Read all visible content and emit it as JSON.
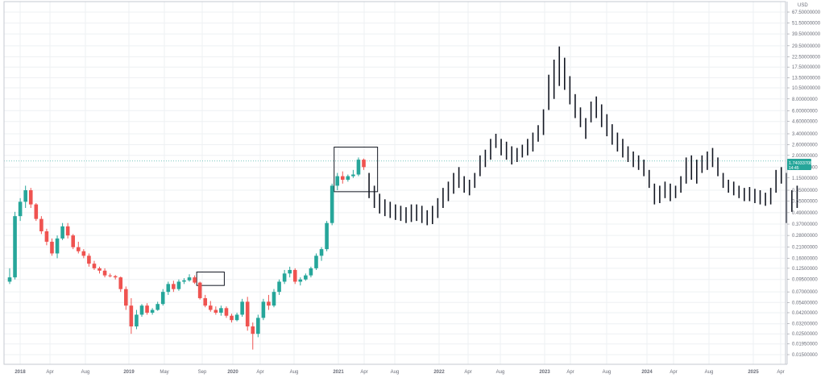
{
  "chart_data": {
    "type": "candlestick",
    "currency": "USD",
    "price_scale": "log",
    "y_ticks": [
      "67.50000000",
      "51.50000000",
      "39.50000000",
      "29.50000000",
      "22.50000000",
      "17.50000000",
      "13.50000000",
      "10.50000000",
      "8.00000000",
      "6.00000000",
      "4.60000000",
      "3.40000000",
      "2.60000000",
      "2.00000000",
      "1.50000000",
      "1.15000000",
      "0.85000000",
      "0.65000000",
      "0.49000000",
      "0.37000000",
      "0.28000000",
      "0.21000000",
      "0.16000000",
      "0.12500000",
      "0.09500000",
      "0.07000000",
      "0.05400000",
      "0.04200000",
      "0.03200000",
      "0.02500000",
      "0.01950000",
      "0.01500000"
    ],
    "x_ticks": [
      "2018",
      "Apr",
      "Aug",
      "2019",
      "May",
      "Sep",
      "2020",
      "Apr",
      "Aug",
      "2021",
      "Apr",
      "Aug",
      "2022",
      "Apr",
      "Aug",
      "2023",
      "Apr",
      "Aug",
      "2024",
      "Apr",
      "Aug",
      "2025",
      "Apr"
    ],
    "last_price": {
      "value": "1.74033708",
      "countdown": "14:45"
    },
    "history_candles": [
      [
        0.09,
        0.125,
        0.085,
        0.1
      ],
      [
        0.1,
        0.5,
        0.095,
        0.45
      ],
      [
        0.45,
        0.7,
        0.4,
        0.64
      ],
      [
        0.64,
        0.95,
        0.55,
        0.85
      ],
      [
        0.85,
        0.9,
        0.55,
        0.6
      ],
      [
        0.6,
        0.62,
        0.4,
        0.42
      ],
      [
        0.42,
        0.45,
        0.29,
        0.31
      ],
      [
        0.31,
        0.33,
        0.22,
        0.24
      ],
      [
        0.24,
        0.26,
        0.17,
        0.18
      ],
      [
        0.18,
        0.28,
        0.16,
        0.26
      ],
      [
        0.26,
        0.38,
        0.25,
        0.35
      ],
      [
        0.35,
        0.38,
        0.26,
        0.28
      ],
      [
        0.28,
        0.29,
        0.2,
        0.21
      ],
      [
        0.21,
        0.24,
        0.18,
        0.19
      ],
      [
        0.19,
        0.2,
        0.16,
        0.17
      ],
      [
        0.17,
        0.18,
        0.13,
        0.14
      ],
      [
        0.14,
        0.15,
        0.12,
        0.125
      ],
      [
        0.125,
        0.13,
        0.11,
        0.118
      ],
      [
        0.118,
        0.125,
        0.1,
        0.105
      ],
      [
        0.105,
        0.11,
        0.1,
        0.103
      ],
      [
        0.103,
        0.106,
        0.095,
        0.1
      ],
      [
        0.1,
        0.102,
        0.07,
        0.075
      ],
      [
        0.075,
        0.08,
        0.045,
        0.05
      ],
      [
        0.05,
        0.06,
        0.025,
        0.03
      ],
      [
        0.03,
        0.045,
        0.028,
        0.04
      ],
      [
        0.04,
        0.052,
        0.038,
        0.05
      ],
      [
        0.05,
        0.053,
        0.04,
        0.042
      ],
      [
        0.042,
        0.047,
        0.04,
        0.045
      ],
      [
        0.045,
        0.055,
        0.044,
        0.052
      ],
      [
        0.052,
        0.075,
        0.05,
        0.07
      ],
      [
        0.07,
        0.09,
        0.065,
        0.085
      ],
      [
        0.085,
        0.092,
        0.07,
        0.075
      ],
      [
        0.075,
        0.095,
        0.072,
        0.09
      ],
      [
        0.09,
        0.098,
        0.085,
        0.093
      ],
      [
        0.093,
        0.108,
        0.09,
        0.1
      ],
      [
        0.1,
        0.105,
        0.085,
        0.088
      ],
      [
        0.088,
        0.09,
        0.058,
        0.06
      ],
      [
        0.06,
        0.065,
        0.048,
        0.05
      ],
      [
        0.05,
        0.056,
        0.043,
        0.045
      ],
      [
        0.045,
        0.049,
        0.04,
        0.042
      ],
      [
        0.042,
        0.05,
        0.039,
        0.047
      ],
      [
        0.047,
        0.049,
        0.037,
        0.039
      ],
      [
        0.039,
        0.041,
        0.033,
        0.035
      ],
      [
        0.035,
        0.042,
        0.034,
        0.04
      ],
      [
        0.04,
        0.059,
        0.038,
        0.055
      ],
      [
        0.055,
        0.062,
        0.027,
        0.03
      ],
      [
        0.03,
        0.033,
        0.017,
        0.025
      ],
      [
        0.025,
        0.04,
        0.023,
        0.037
      ],
      [
        0.037,
        0.059,
        0.035,
        0.055
      ],
      [
        0.055,
        0.065,
        0.045,
        0.05
      ],
      [
        0.05,
        0.075,
        0.048,
        0.07
      ],
      [
        0.07,
        0.095,
        0.065,
        0.09
      ],
      [
        0.09,
        0.12,
        0.085,
        0.11
      ],
      [
        0.11,
        0.13,
        0.1,
        0.12
      ],
      [
        0.12,
        0.125,
        0.085,
        0.09
      ],
      [
        0.09,
        0.1,
        0.082,
        0.095
      ],
      [
        0.095,
        0.11,
        0.092,
        0.105
      ],
      [
        0.105,
        0.13,
        0.1,
        0.125
      ],
      [
        0.125,
        0.18,
        0.12,
        0.17
      ],
      [
        0.17,
        0.21,
        0.15,
        0.2
      ],
      [
        0.2,
        0.4,
        0.19,
        0.38
      ],
      [
        0.38,
        1.0,
        0.36,
        0.95
      ],
      [
        0.95,
        1.3,
        0.85,
        1.2
      ],
      [
        1.2,
        1.35,
        1.0,
        1.1
      ],
      [
        1.1,
        1.25,
        1.05,
        1.2
      ],
      [
        1.2,
        1.4,
        1.15,
        1.25
      ],
      [
        1.25,
        1.9,
        1.2,
        1.8
      ],
      [
        1.8,
        1.85,
        1.4,
        1.5
      ]
    ],
    "projection_ranges": [
      [
        1.3,
        0.7
      ],
      [
        0.95,
        0.55
      ],
      [
        0.78,
        0.48
      ],
      [
        0.68,
        0.45
      ],
      [
        0.64,
        0.43
      ],
      [
        0.6,
        0.41
      ],
      [
        0.58,
        0.4
      ],
      [
        0.56,
        0.38
      ],
      [
        0.6,
        0.39
      ],
      [
        0.6,
        0.4
      ],
      [
        0.58,
        0.38
      ],
      [
        0.52,
        0.36
      ],
      [
        0.58,
        0.37
      ],
      [
        0.7,
        0.43
      ],
      [
        0.9,
        0.55
      ],
      [
        1.05,
        0.65
      ],
      [
        1.3,
        0.78
      ],
      [
        1.5,
        0.9
      ],
      [
        1.2,
        0.8
      ],
      [
        1.1,
        0.75
      ],
      [
        1.3,
        0.9
      ],
      [
        2.0,
        1.2
      ],
      [
        2.3,
        1.5
      ],
      [
        3.0,
        1.8
      ],
      [
        3.4,
        2.4
      ],
      [
        3.0,
        2.0
      ],
      [
        2.8,
        1.8
      ],
      [
        2.5,
        1.6
      ],
      [
        2.4,
        1.7
      ],
      [
        2.6,
        1.9
      ],
      [
        3.0,
        2.0
      ],
      [
        3.5,
        2.2
      ],
      [
        4.2,
        2.8
      ],
      [
        6.2,
        3.3
      ],
      [
        14.5,
        6.1
      ],
      [
        21.0,
        8.0
      ],
      [
        29.0,
        11.0
      ],
      [
        22.0,
        10.0
      ],
      [
        14.0,
        7.0
      ],
      [
        9.0,
        5.0
      ],
      [
        6.5,
        4.0
      ],
      [
        5.0,
        3.0
      ],
      [
        7.5,
        4.5
      ],
      [
        8.5,
        5.0
      ],
      [
        7.0,
        4.0
      ],
      [
        5.5,
        3.2
      ],
      [
        4.3,
        2.6
      ],
      [
        3.5,
        2.2
      ],
      [
        3.0,
        1.9
      ],
      [
        2.5,
        1.7
      ],
      [
        2.2,
        1.5
      ],
      [
        2.0,
        1.4
      ],
      [
        1.8,
        1.2
      ],
      [
        1.4,
        0.9
      ],
      [
        1.0,
        0.6
      ],
      [
        0.95,
        0.62
      ],
      [
        1.05,
        0.7
      ],
      [
        1.0,
        0.65
      ],
      [
        0.95,
        0.7
      ],
      [
        1.2,
        0.8
      ],
      [
        1.9,
        1.0
      ],
      [
        2.0,
        1.1
      ],
      [
        1.8,
        1.0
      ],
      [
        2.0,
        1.3
      ],
      [
        2.2,
        1.4
      ],
      [
        2.4,
        1.5
      ],
      [
        1.9,
        1.2
      ],
      [
        1.3,
        0.9
      ],
      [
        1.1,
        0.8
      ],
      [
        1.05,
        0.75
      ],
      [
        0.95,
        0.7
      ],
      [
        0.9,
        0.65
      ],
      [
        0.92,
        0.65
      ],
      [
        0.88,
        0.62
      ],
      [
        0.85,
        0.6
      ],
      [
        0.8,
        0.58
      ],
      [
        0.9,
        0.6
      ],
      [
        1.4,
        0.8
      ],
      [
        1.5,
        1.0
      ],
      [
        1.3,
        0.38
      ],
      [
        0.85,
        0.5
      ],
      [
        0.95,
        0.55
      ]
    ],
    "boxes": [
      {
        "start": 36,
        "end": 40,
        "high": 0.114,
        "low": 0.082
      },
      {
        "start": 62,
        "end": 69,
        "high": 2.45,
        "low": 0.82
      }
    ],
    "colors": {
      "up": "#26a69a",
      "down": "#ef5350",
      "projection": "#131722",
      "box": "#131722",
      "price_label": "#26a69a"
    }
  }
}
